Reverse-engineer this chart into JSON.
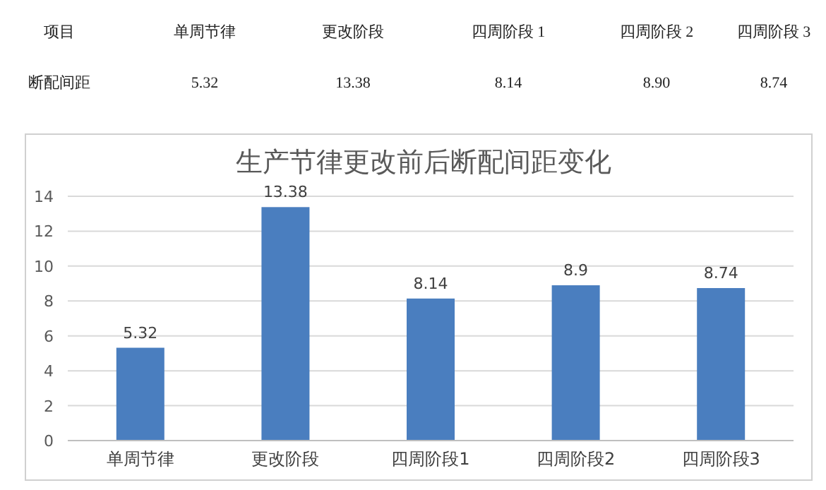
{
  "chart_data": {
    "type": "bar",
    "title": "生产节律更改前后断配间距变化",
    "categories": [
      "单周节律",
      "更改阶段",
      "四周阶段1",
      "四周阶段2",
      "四周阶段3"
    ],
    "values": [
      5.32,
      13.38,
      8.14,
      8.9,
      8.74
    ],
    "value_labels": [
      "5.32",
      "13.38",
      "8.14",
      "8.9",
      "8.74"
    ],
    "color": "#4a7ebf",
    "ylim": [
      0,
      14
    ],
    "yticks": [
      0,
      2,
      4,
      6,
      8,
      10,
      12,
      14
    ],
    "grid": "y",
    "annotations": [
      "项目",
      "单周节律",
      "更改阶段",
      "四周阶段 1",
      "四周阶段 2",
      "四周阶段 3",
      "断配间距",
      "5.32",
      "13.38",
      "8.14",
      "8.90",
      "8.74"
    ]
  }
}
